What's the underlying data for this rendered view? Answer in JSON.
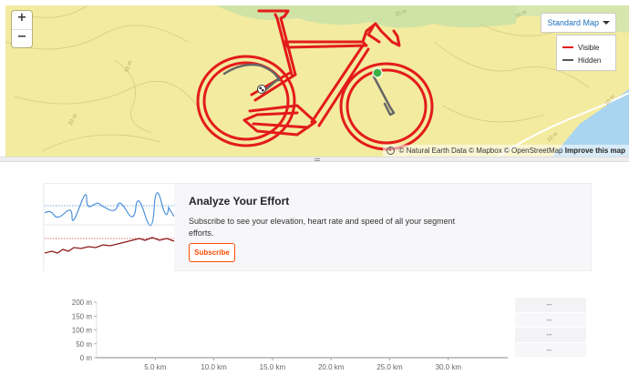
{
  "map": {
    "zoom_in": "+",
    "zoom_out": "−",
    "map_type": "Standard Map",
    "contours": [
      "10 m",
      "10 m",
      "20 m",
      "20 m",
      "10 m",
      "10 m"
    ],
    "legend": [
      {
        "label": "Visible",
        "color": "#e31b1b"
      },
      {
        "label": "Hidden",
        "color": "#555555"
      }
    ],
    "attribution": {
      "info": "i",
      "text": "© Natural Earth Data © Mapbox © OpenStreetMap",
      "improve": "Improve this map"
    },
    "colors": {
      "route": "#e31b1b",
      "hidden_route": "#666666",
      "start_marker": "#3cb043",
      "land": "#f3eba0",
      "park": "#c9e2a8",
      "water": "#a9d5f0"
    }
  },
  "upsell": {
    "title": "Analyze Your Effort",
    "description": "Subscribe to see your elevation, heart rate and speed of all your segment efforts.",
    "button": "Subscribe"
  },
  "chart_data": {
    "type": "area",
    "x_ticks": [
      "5.0 km",
      "10.0 km",
      "15.0 km",
      "20.0 km",
      "25.0 km",
      "30.0 km"
    ],
    "y_ticks": [
      "200 m",
      "150 m",
      "100 m",
      "50 m",
      "0 m"
    ],
    "ylim": [
      0,
      200
    ],
    "series": []
  },
  "side_panel": {
    "values": [
      "--",
      "--",
      "--",
      "--"
    ]
  }
}
